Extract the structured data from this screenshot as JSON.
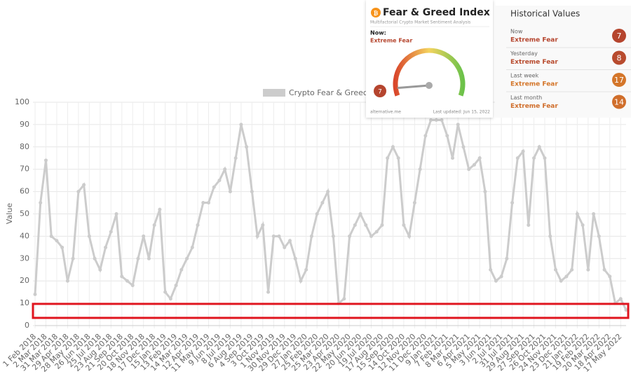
{
  "chart_data": {
    "type": "line",
    "ylabel": "Value",
    "categories": [
      "1 Feb 2018",
      null,
      "2 Mar 2018",
      null,
      "31 Mar 2018",
      null,
      "29 Apr 2018",
      null,
      "28 May 2018",
      null,
      "26 Jun 2018",
      null,
      "25 Jul 2018",
      null,
      "23 Aug 2018",
      null,
      "21 Sep 2018",
      null,
      "20 Oct 2018",
      null,
      "18 Nov 2018",
      null,
      "17 Dec 2018",
      null,
      "15 Jan 2019",
      null,
      "13 Feb 2019",
      null,
      "14 Mar 2019",
      null,
      "12 Apr 2019",
      null,
      "11 May 2019",
      null,
      "9 Jun 2019",
      null,
      "8 Jul 2019",
      null,
      "6 Aug 2019",
      null,
      "4 Sep 2019",
      null,
      "3 Oct 2019",
      null,
      "1 Nov 2019",
      null,
      "30 Nov 2019",
      null,
      "29 Dec 2019",
      null,
      "27 Jan 2020",
      null,
      "25 Feb 2020",
      null,
      "25 Mar 2020",
      null,
      "23 Apr 2020",
      null,
      "22 May 2020",
      null,
      "20 Jun 2020",
      null,
      "19 Jul 2020",
      null,
      "17 Aug 2020",
      null,
      "15 Sep 2020",
      null,
      "14 Oct 2020",
      null,
      "12 Nov 2020",
      null,
      "11 Dec 2020",
      null,
      "9 Jan 2021",
      null,
      "7 Feb 2021",
      null,
      "8 Mar 2021",
      null,
      "6 Apr 2021",
      null,
      "5 May 2021",
      null,
      "3 Jun 2021",
      null,
      "2 Jul 2021",
      null,
      "31 Jul 2021",
      null,
      "29 Aug 2021",
      null,
      "27 Sep 2021",
      null,
      "26 Oct 2021",
      null,
      "24 Nov 2021",
      null,
      "23 Dec 2021",
      null,
      "21 Jan 2022",
      null,
      "19 Feb 2022",
      null,
      "20 Mar 2022",
      null,
      "18 Apr 2022",
      null,
      "17 May 2022",
      null
    ],
    "series": [
      {
        "name": "Crypto Fear & Greed Index",
        "color": "#cccccc",
        "values": [
          14,
          55,
          74,
          40,
          38,
          35,
          20,
          30,
          60,
          63,
          40,
          30,
          25,
          35,
          42,
          50,
          22,
          20,
          18,
          30,
          40,
          30,
          45,
          52,
          15,
          12,
          18,
          25,
          30,
          35,
          45,
          55,
          55,
          62,
          65,
          70,
          60,
          75,
          90,
          80,
          60,
          40,
          45,
          15,
          40,
          40,
          35,
          38,
          30,
          20,
          25,
          40,
          50,
          55,
          60,
          40,
          10,
          12,
          40,
          45,
          50,
          45,
          40,
          42,
          45,
          75,
          80,
          75,
          45,
          40,
          55,
          70,
          85,
          92,
          92,
          92,
          85,
          75,
          90,
          80,
          70,
          72,
          75,
          60,
          25,
          20,
          22,
          30,
          55,
          75,
          78,
          45,
          75,
          80,
          75,
          40,
          25,
          20,
          22,
          25,
          50,
          45,
          25,
          50,
          40,
          25,
          22,
          10,
          12,
          7
        ]
      }
    ],
    "ylim": [
      0,
      100
    ],
    "yticks": [
      0,
      10,
      20,
      30,
      40,
      50,
      60,
      70,
      80,
      90,
      100
    ],
    "grid": true
  },
  "widget": {
    "title": "Fear & Greed Index",
    "subtitle": "Multifactorial Crypto Market Sentiment Analysis",
    "now_label": "Now:",
    "now_class": "Extreme Fear",
    "now_value": 7,
    "now_color": "#b5452e",
    "source": "alternative.me",
    "updated": "Last updated: Jun 15, 2022",
    "history_title": "Historical Values",
    "history": [
      {
        "label": "Now",
        "class": "Extreme Fear",
        "value": 7,
        "color": "#b5452e"
      },
      {
        "label": "Yesterday",
        "class": "Extreme Fear",
        "value": 8,
        "color": "#b84b2e"
      },
      {
        "label": "Last week",
        "class": "Extreme Fear",
        "value": 17,
        "color": "#d4762a"
      },
      {
        "label": "Last month",
        "class": "Extreme Fear",
        "value": 14,
        "color": "#d06e2b"
      }
    ]
  }
}
